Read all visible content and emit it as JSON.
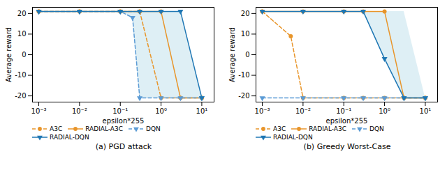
{
  "chart_data": [
    {
      "type": "line",
      "title": "(a) PGD attack",
      "xlabel": "epsilon*255",
      "ylabel": "Average reward",
      "log": "x",
      "xlim": [
        0.0007,
        20
      ],
      "xticks": [
        {
          "value": 0.001,
          "label": "10⁻³"
        },
        {
          "value": 0.01,
          "label": "10⁻²"
        },
        {
          "value": 0.1,
          "label": "10⁻¹"
        },
        {
          "value": 1,
          "label": "10⁰"
        },
        {
          "value": 10,
          "label": "10¹"
        }
      ],
      "ylim": [
        -23,
        23
      ],
      "yticks": [
        -20,
        -10,
        0,
        10,
        20
      ],
      "grid": false,
      "legend": "lower left",
      "band": {
        "x": [
          0.1,
          0.2,
          0.3,
          1,
          3,
          10
        ],
        "lower": [
          21,
          18,
          -21,
          -21,
          -21,
          -21
        ],
        "upper": [
          21,
          21,
          21,
          21,
          21,
          -21
        ],
        "color": "#add8e6"
      },
      "series": [
        {
          "name": "A3C",
          "color": "#e8952a",
          "line_style": "dashed",
          "marker": "circle",
          "x": [
            0.001,
            0.01,
            0.1,
            0.3,
            1,
            3,
            10
          ],
          "values": [
            21,
            21,
            21,
            21,
            -21,
            -21,
            -21
          ]
        },
        {
          "name": "RADIAL-A3C",
          "color": "#e8952a",
          "line_style": "solid",
          "marker": "circle",
          "x": [
            0.001,
            0.01,
            0.1,
            0.3,
            1,
            3,
            10
          ],
          "values": [
            21,
            21,
            21,
            21,
            21,
            -21,
            -21
          ]
        },
        {
          "name": "DQN",
          "color": "#5b9bd5",
          "line_style": "dashed",
          "marker": "triangle-down",
          "x": [
            0.001,
            0.01,
            0.1,
            0.2,
            0.3,
            1,
            3,
            10
          ],
          "values": [
            21,
            21,
            21,
            18,
            -21,
            -21,
            -21,
            -21
          ]
        },
        {
          "name": "RADIAL-DQN",
          "color": "#1f77b4",
          "line_style": "solid",
          "marker": "triangle-down",
          "x": [
            0.001,
            0.01,
            0.1,
            0.3,
            1,
            3,
            10
          ],
          "values": [
            21,
            21,
            21,
            21,
            21,
            21,
            -21
          ]
        }
      ]
    },
    {
      "type": "line",
      "title": "(b) Greedy Worst-Case",
      "xlabel": "epsilon*255",
      "ylabel": "Average reward",
      "log": "x",
      "xlim": [
        0.0007,
        20
      ],
      "xticks": [
        {
          "value": 0.001,
          "label": "10⁻³"
        },
        {
          "value": 0.01,
          "label": "10⁻²"
        },
        {
          "value": 0.1,
          "label": "10⁻¹"
        },
        {
          "value": 1,
          "label": "10⁰"
        },
        {
          "value": 10,
          "label": "10¹"
        }
      ],
      "ylim": [
        -23,
        23
      ],
      "yticks": [
        -20,
        -10,
        0,
        10,
        20
      ],
      "grid": false,
      "legend": "lower left",
      "band": {
        "x": [
          0.3,
          1,
          3,
          10
        ],
        "lower": [
          21,
          -2,
          -21,
          -21
        ],
        "upper": [
          21,
          21,
          21,
          -21
        ],
        "color": "#add8e6"
      },
      "series": [
        {
          "name": "A3C",
          "color": "#e8952a",
          "line_style": "dashed",
          "marker": "circle",
          "x": [
            0.001,
            0.005,
            0.01,
            0.1,
            0.3,
            1,
            3,
            10
          ],
          "values": [
            21,
            9,
            -21,
            -21,
            -21,
            -21,
            -21,
            -21
          ]
        },
        {
          "name": "RADIAL-A3C",
          "color": "#e8952a",
          "line_style": "solid",
          "marker": "circle",
          "x": [
            0.001,
            0.01,
            0.1,
            0.3,
            1,
            3,
            10
          ],
          "values": [
            21,
            21,
            21,
            21,
            21,
            -21,
            -21
          ]
        },
        {
          "name": "DQN",
          "color": "#5b9bd5",
          "line_style": "dashed",
          "marker": "triangle-down",
          "x": [
            0.001,
            0.01,
            0.1,
            0.3,
            1,
            3,
            10
          ],
          "values": [
            -21,
            -21,
            -21,
            -21,
            -21,
            -21,
            -21
          ]
        },
        {
          "name": "RADIAL-DQN",
          "color": "#1f77b4",
          "line_style": "solid",
          "marker": "triangle-down",
          "x": [
            0.001,
            0.01,
            0.1,
            0.3,
            1,
            3,
            10
          ],
          "values": [
            21,
            21,
            21,
            21,
            -2,
            -21,
            -21
          ]
        }
      ]
    }
  ]
}
